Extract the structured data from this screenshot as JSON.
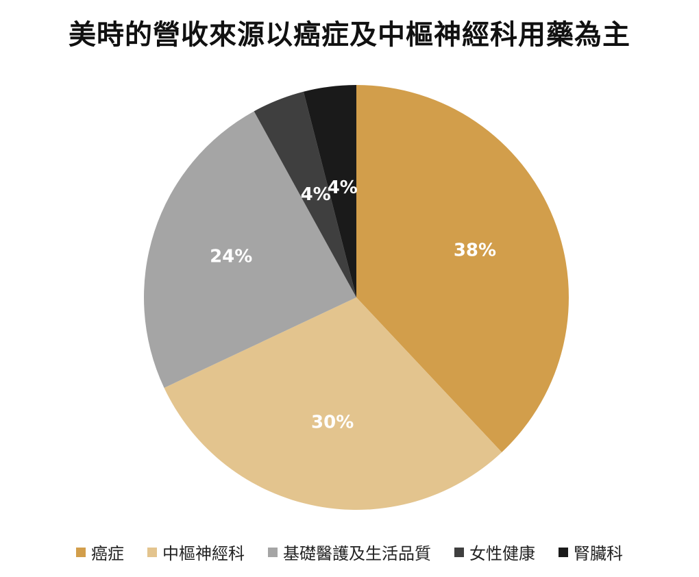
{
  "chart_data": {
    "type": "pie",
    "title": "美時的營收來源以癌症及中樞神經科用藥為主",
    "categories": [
      "癌症",
      "中樞神經科",
      "基礎醫護及生活品質",
      "女性健康",
      "腎臟科"
    ],
    "values": [
      38,
      30,
      24,
      4,
      4
    ],
    "data_labels": [
      "38%",
      "30%",
      "24%",
      "4%",
      "4%"
    ],
    "colors": [
      "#D29E4B",
      "#E3C48E",
      "#A5A5A5",
      "#3F3F3F",
      "#1A1A1A"
    ],
    "legend_position": "bottom",
    "start_angle": "12 o'clock",
    "direction": "clockwise"
  }
}
